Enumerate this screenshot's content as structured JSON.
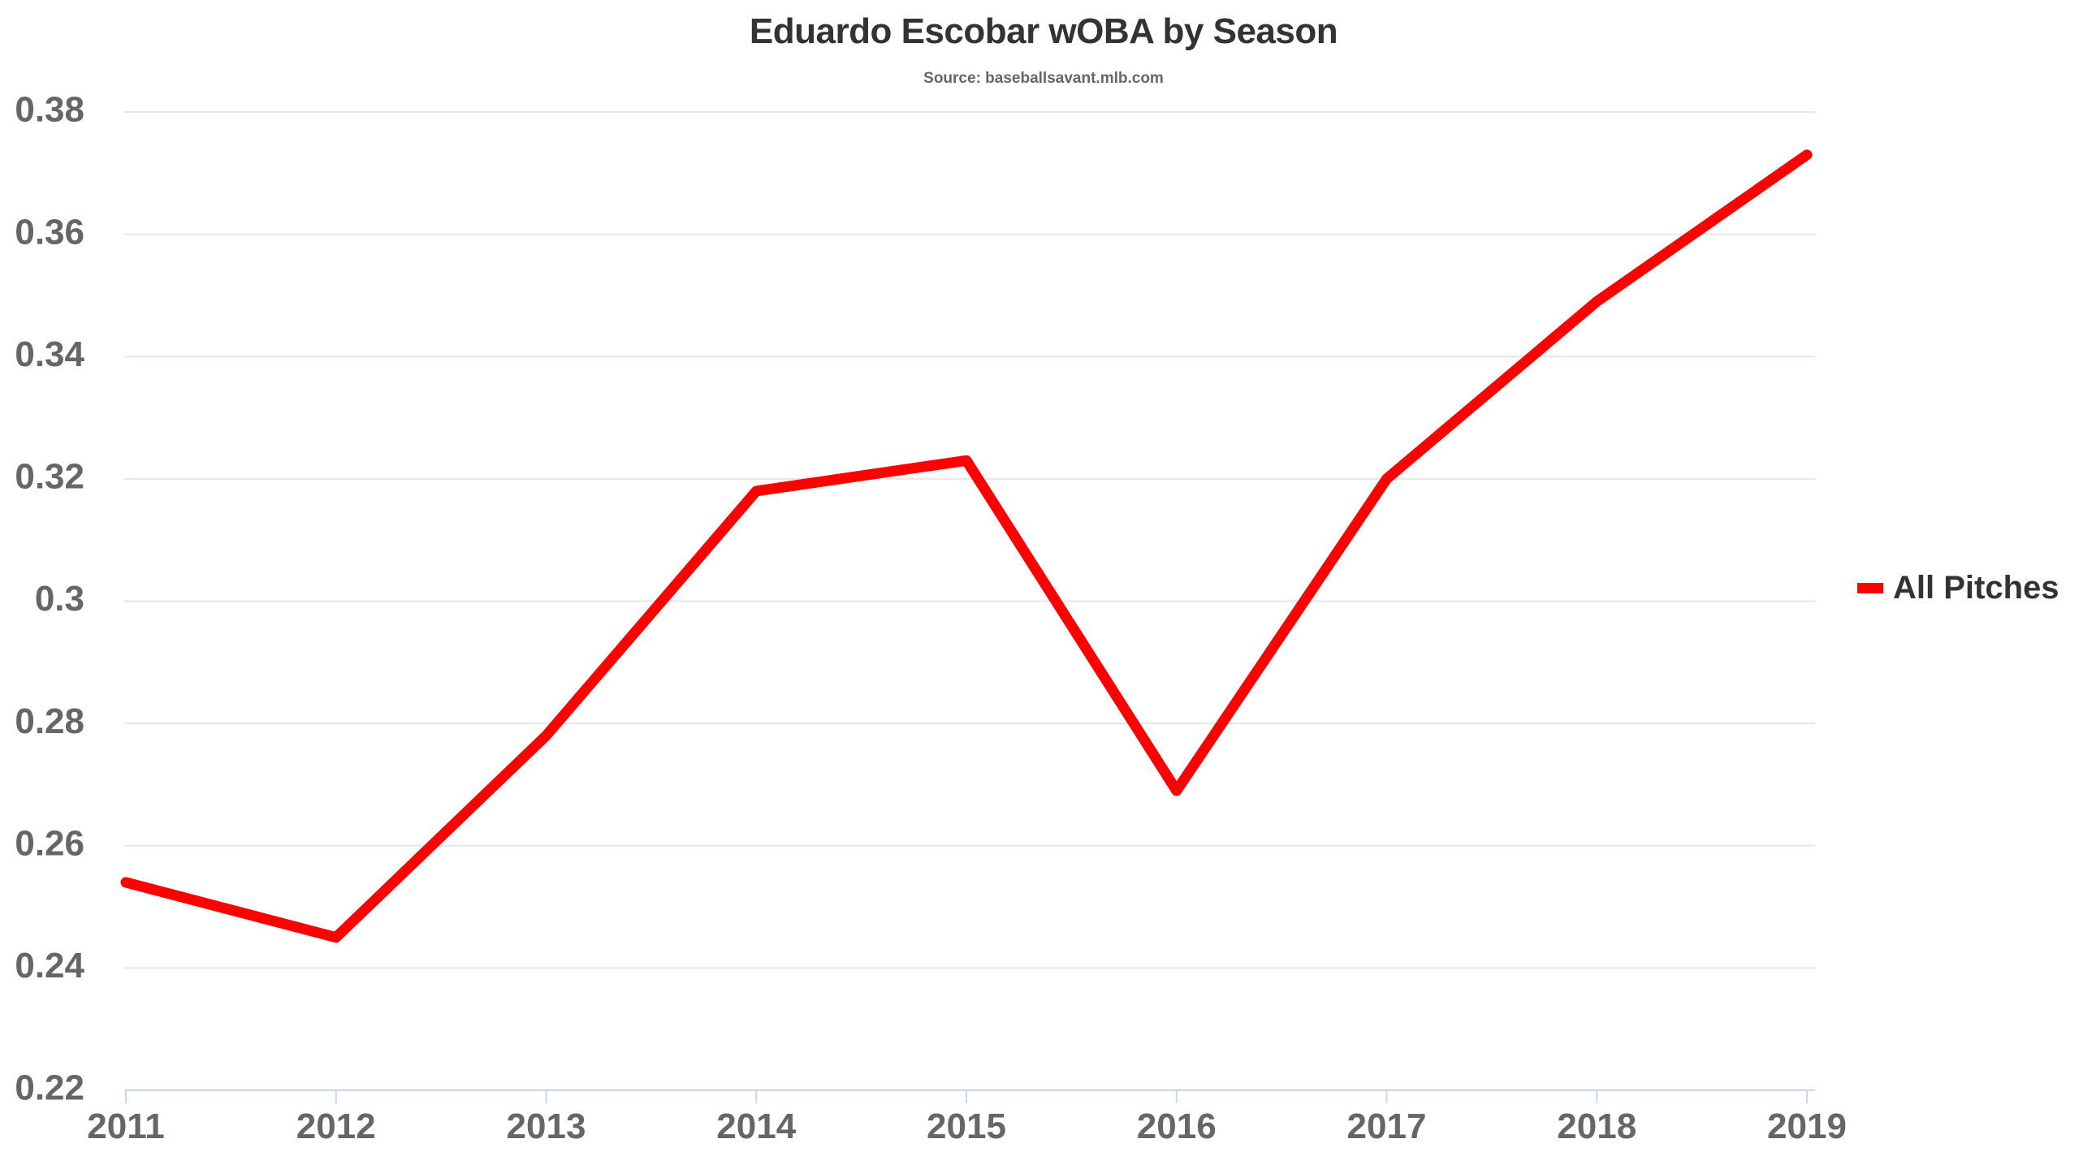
{
  "chart_data": {
    "type": "line",
    "title": "Eduardo Escobar wOBA by Season",
    "subtitle": "Source: baseballsavant.mlb.com",
    "xlabel": "",
    "ylabel": "",
    "categories": [
      "2011",
      "2012",
      "2013",
      "2014",
      "2015",
      "2016",
      "2017",
      "2018",
      "2019"
    ],
    "series": [
      {
        "name": "All Pitches",
        "color": "#ff0000",
        "values": [
          0.254,
          0.245,
          0.278,
          0.318,
          0.323,
          0.269,
          0.32,
          0.349,
          0.373
        ]
      }
    ],
    "ylim": [
      0.22,
      0.38
    ],
    "yticks": [
      0.22,
      0.24,
      0.26,
      0.28,
      0.3,
      0.32,
      0.34,
      0.36,
      0.38
    ],
    "ytick_labels": [
      "0.22",
      "0.24",
      "0.26",
      "0.28",
      "0.3",
      "0.32",
      "0.34",
      "0.36",
      "0.38"
    ],
    "grid": true,
    "legend_position": "right",
    "colors": {
      "grid": "#e6e6e6",
      "axis": "#ccd6eb",
      "tick_text": "#666666",
      "title_text": "#333333"
    }
  }
}
